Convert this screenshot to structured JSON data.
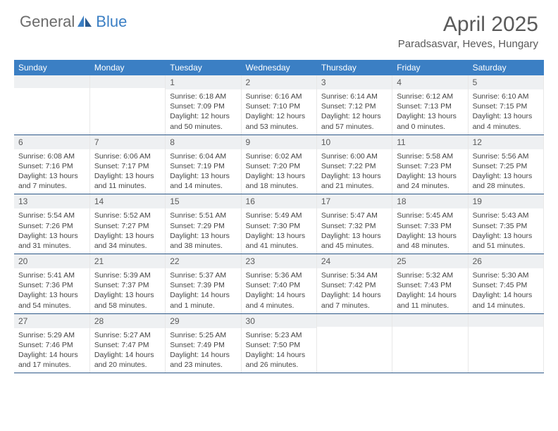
{
  "brand": {
    "name1": "General",
    "name2": "Blue"
  },
  "title": "April 2025",
  "location": "Paradsasvar, Heves, Hungary",
  "colors": {
    "header_bg": "#3b7fc4",
    "header_text": "#ffffff",
    "daynum_bg": "#eef0f2",
    "text": "#5a5a5a",
    "row_border": "#2f5a8a"
  },
  "weekdays": [
    "Sunday",
    "Monday",
    "Tuesday",
    "Wednesday",
    "Thursday",
    "Friday",
    "Saturday"
  ],
  "weeks": [
    [
      {
        "n": "",
        "lines": []
      },
      {
        "n": "",
        "lines": []
      },
      {
        "n": "1",
        "lines": [
          "Sunrise: 6:18 AM",
          "Sunset: 7:09 PM",
          "Daylight: 12 hours and 50 minutes."
        ]
      },
      {
        "n": "2",
        "lines": [
          "Sunrise: 6:16 AM",
          "Sunset: 7:10 PM",
          "Daylight: 12 hours and 53 minutes."
        ]
      },
      {
        "n": "3",
        "lines": [
          "Sunrise: 6:14 AM",
          "Sunset: 7:12 PM",
          "Daylight: 12 hours and 57 minutes."
        ]
      },
      {
        "n": "4",
        "lines": [
          "Sunrise: 6:12 AM",
          "Sunset: 7:13 PM",
          "Daylight: 13 hours and 0 minutes."
        ]
      },
      {
        "n": "5",
        "lines": [
          "Sunrise: 6:10 AM",
          "Sunset: 7:15 PM",
          "Daylight: 13 hours and 4 minutes."
        ]
      }
    ],
    [
      {
        "n": "6",
        "lines": [
          "Sunrise: 6:08 AM",
          "Sunset: 7:16 PM",
          "Daylight: 13 hours and 7 minutes."
        ]
      },
      {
        "n": "7",
        "lines": [
          "Sunrise: 6:06 AM",
          "Sunset: 7:17 PM",
          "Daylight: 13 hours and 11 minutes."
        ]
      },
      {
        "n": "8",
        "lines": [
          "Sunrise: 6:04 AM",
          "Sunset: 7:19 PM",
          "Daylight: 13 hours and 14 minutes."
        ]
      },
      {
        "n": "9",
        "lines": [
          "Sunrise: 6:02 AM",
          "Sunset: 7:20 PM",
          "Daylight: 13 hours and 18 minutes."
        ]
      },
      {
        "n": "10",
        "lines": [
          "Sunrise: 6:00 AM",
          "Sunset: 7:22 PM",
          "Daylight: 13 hours and 21 minutes."
        ]
      },
      {
        "n": "11",
        "lines": [
          "Sunrise: 5:58 AM",
          "Sunset: 7:23 PM",
          "Daylight: 13 hours and 24 minutes."
        ]
      },
      {
        "n": "12",
        "lines": [
          "Sunrise: 5:56 AM",
          "Sunset: 7:25 PM",
          "Daylight: 13 hours and 28 minutes."
        ]
      }
    ],
    [
      {
        "n": "13",
        "lines": [
          "Sunrise: 5:54 AM",
          "Sunset: 7:26 PM",
          "Daylight: 13 hours and 31 minutes."
        ]
      },
      {
        "n": "14",
        "lines": [
          "Sunrise: 5:52 AM",
          "Sunset: 7:27 PM",
          "Daylight: 13 hours and 34 minutes."
        ]
      },
      {
        "n": "15",
        "lines": [
          "Sunrise: 5:51 AM",
          "Sunset: 7:29 PM",
          "Daylight: 13 hours and 38 minutes."
        ]
      },
      {
        "n": "16",
        "lines": [
          "Sunrise: 5:49 AM",
          "Sunset: 7:30 PM",
          "Daylight: 13 hours and 41 minutes."
        ]
      },
      {
        "n": "17",
        "lines": [
          "Sunrise: 5:47 AM",
          "Sunset: 7:32 PM",
          "Daylight: 13 hours and 45 minutes."
        ]
      },
      {
        "n": "18",
        "lines": [
          "Sunrise: 5:45 AM",
          "Sunset: 7:33 PM",
          "Daylight: 13 hours and 48 minutes."
        ]
      },
      {
        "n": "19",
        "lines": [
          "Sunrise: 5:43 AM",
          "Sunset: 7:35 PM",
          "Daylight: 13 hours and 51 minutes."
        ]
      }
    ],
    [
      {
        "n": "20",
        "lines": [
          "Sunrise: 5:41 AM",
          "Sunset: 7:36 PM",
          "Daylight: 13 hours and 54 minutes."
        ]
      },
      {
        "n": "21",
        "lines": [
          "Sunrise: 5:39 AM",
          "Sunset: 7:37 PM",
          "Daylight: 13 hours and 58 minutes."
        ]
      },
      {
        "n": "22",
        "lines": [
          "Sunrise: 5:37 AM",
          "Sunset: 7:39 PM",
          "Daylight: 14 hours and 1 minute."
        ]
      },
      {
        "n": "23",
        "lines": [
          "Sunrise: 5:36 AM",
          "Sunset: 7:40 PM",
          "Daylight: 14 hours and 4 minutes."
        ]
      },
      {
        "n": "24",
        "lines": [
          "Sunrise: 5:34 AM",
          "Sunset: 7:42 PM",
          "Daylight: 14 hours and 7 minutes."
        ]
      },
      {
        "n": "25",
        "lines": [
          "Sunrise: 5:32 AM",
          "Sunset: 7:43 PM",
          "Daylight: 14 hours and 11 minutes."
        ]
      },
      {
        "n": "26",
        "lines": [
          "Sunrise: 5:30 AM",
          "Sunset: 7:45 PM",
          "Daylight: 14 hours and 14 minutes."
        ]
      }
    ],
    [
      {
        "n": "27",
        "lines": [
          "Sunrise: 5:29 AM",
          "Sunset: 7:46 PM",
          "Daylight: 14 hours and 17 minutes."
        ]
      },
      {
        "n": "28",
        "lines": [
          "Sunrise: 5:27 AM",
          "Sunset: 7:47 PM",
          "Daylight: 14 hours and 20 minutes."
        ]
      },
      {
        "n": "29",
        "lines": [
          "Sunrise: 5:25 AM",
          "Sunset: 7:49 PM",
          "Daylight: 14 hours and 23 minutes."
        ]
      },
      {
        "n": "30",
        "lines": [
          "Sunrise: 5:23 AM",
          "Sunset: 7:50 PM",
          "Daylight: 14 hours and 26 minutes."
        ]
      },
      {
        "n": "",
        "lines": []
      },
      {
        "n": "",
        "lines": []
      },
      {
        "n": "",
        "lines": []
      }
    ]
  ]
}
